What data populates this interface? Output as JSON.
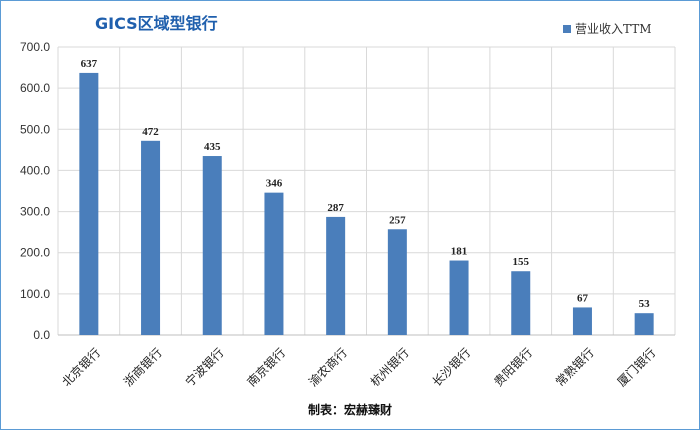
{
  "chart_data": {
    "type": "bar",
    "title": "GICS区域型银行",
    "categories": [
      "北京银行",
      "浙商银行",
      "宁波银行",
      "南京银行",
      "渝农商行",
      "杭州银行",
      "长沙银行",
      "贵阳银行",
      "常熟银行",
      "厦门银行"
    ],
    "series": [
      {
        "name": "营业收入TTM",
        "values": [
          637,
          472,
          435,
          346,
          287,
          257,
          181,
          155,
          67,
          53
        ]
      }
    ],
    "data_labels": [
      "637",
      "472",
      "435",
      "346",
      "287",
      "257",
      "181",
      "155",
      "67",
      "53"
    ],
    "yticks": [
      "0.0",
      "100.0",
      "200.0",
      "300.0",
      "400.0",
      "500.0",
      "600.0",
      "700.0"
    ],
    "ylim": [
      0,
      700
    ],
    "grid": true,
    "legend_position": "top-right",
    "bar_color": "#4a7ebb"
  },
  "source_text": "制表：宏赫臻财"
}
